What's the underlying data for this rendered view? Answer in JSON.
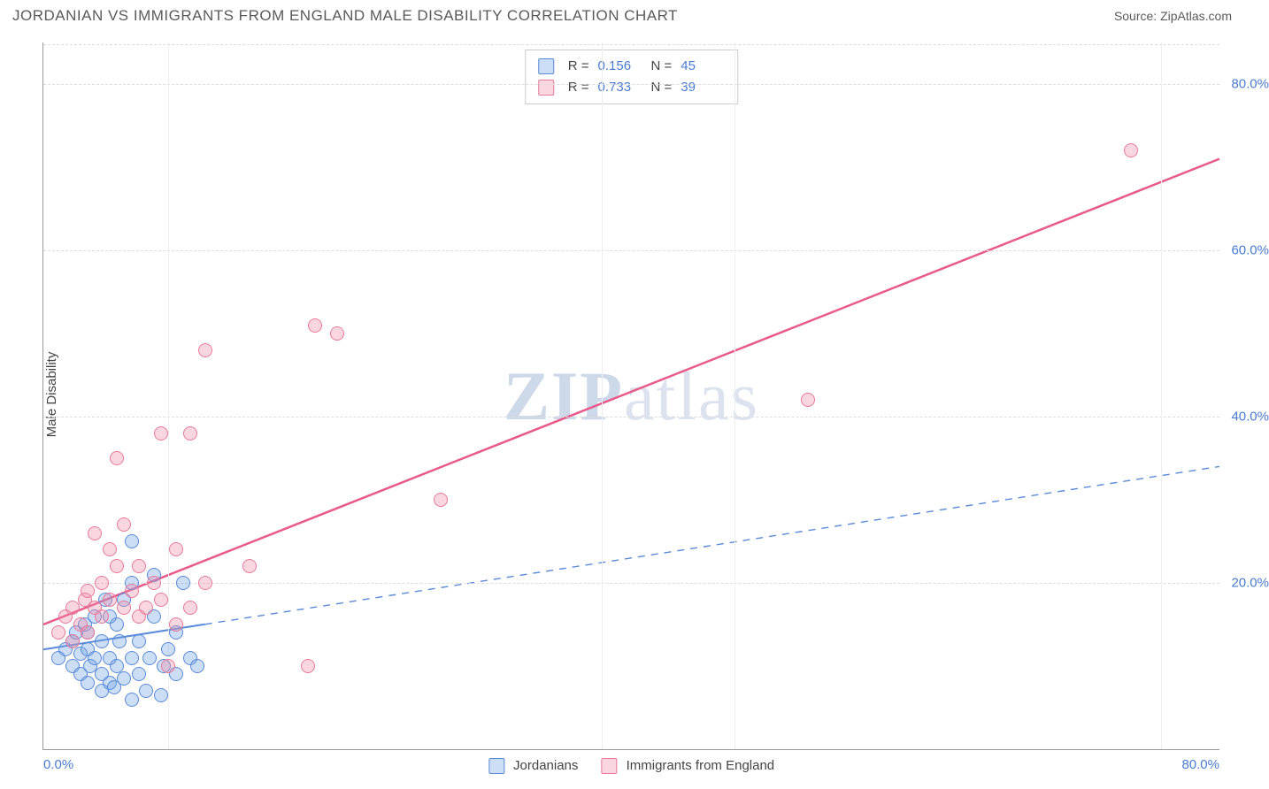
{
  "title": "JORDANIAN VS IMMIGRANTS FROM ENGLAND MALE DISABILITY CORRELATION CHART",
  "source": "Source: ZipAtlas.com",
  "ylabel": "Male Disability",
  "watermark_a": "ZIP",
  "watermark_b": "atlas",
  "chart": {
    "type": "scatter",
    "xlim": [
      0,
      80
    ],
    "ylim": [
      0,
      85
    ],
    "yticks": [
      20,
      40,
      60,
      80
    ],
    "ytick_labels": [
      "20.0%",
      "40.0%",
      "60.0%",
      "80.0%"
    ],
    "xticks": [
      0,
      80
    ],
    "xtick_labels": [
      "0.0%",
      "80.0%"
    ],
    "vgrid": [
      8.5,
      38,
      47,
      76
    ],
    "grid_color": "#dddddd",
    "background": "#ffffff",
    "point_radius": 8,
    "series": [
      {
        "name": "Jordanians",
        "color_fill": "rgba(110,160,230,0.35)",
        "color_stroke": "#5a8ad8",
        "R": "0.156",
        "N": "45",
        "trend": {
          "x1": 0,
          "y1": 12,
          "x2": 80,
          "y2": 34,
          "solid_until_x": 11,
          "stroke": "#5a8ad8",
          "width": 2
        },
        "points": [
          [
            1,
            11
          ],
          [
            1.5,
            12
          ],
          [
            2,
            10
          ],
          [
            2,
            13
          ],
          [
            2.2,
            14
          ],
          [
            2.5,
            9
          ],
          [
            2.5,
            11.5
          ],
          [
            2.8,
            15
          ],
          [
            3,
            8
          ],
          [
            3,
            12
          ],
          [
            3,
            14
          ],
          [
            3.2,
            10
          ],
          [
            3.5,
            11
          ],
          [
            3.5,
            16
          ],
          [
            4,
            7
          ],
          [
            4,
            9
          ],
          [
            4,
            13
          ],
          [
            4.2,
            18
          ],
          [
            4.5,
            8
          ],
          [
            4.5,
            11
          ],
          [
            4.8,
            7.5
          ],
          [
            5,
            15
          ],
          [
            5,
            10
          ],
          [
            5.2,
            13
          ],
          [
            5.5,
            8.5
          ],
          [
            5.5,
            18
          ],
          [
            6,
            6
          ],
          [
            6,
            11
          ],
          [
            6,
            20
          ],
          [
            6,
            25
          ],
          [
            6.5,
            9
          ],
          [
            6.5,
            13
          ],
          [
            7,
            7
          ],
          [
            7.2,
            11
          ],
          [
            7.5,
            21
          ],
          [
            8,
            6.5
          ],
          [
            8.2,
            10
          ],
          [
            8.5,
            12
          ],
          [
            9,
            9
          ],
          [
            9,
            14
          ],
          [
            9.5,
            20
          ],
          [
            10,
            11
          ],
          [
            10.5,
            10
          ],
          [
            7.5,
            16
          ],
          [
            4.5,
            16
          ]
        ]
      },
      {
        "name": "Immigrants from England",
        "color_fill": "rgba(240,140,165,0.35)",
        "color_stroke": "#e67a9a",
        "R": "0.733",
        "N": "39",
        "trend": {
          "x1": 0,
          "y1": 15,
          "x2": 80,
          "y2": 71,
          "solid_until_x": 80,
          "stroke": "#e85a8a",
          "width": 2.5
        },
        "points": [
          [
            1,
            14
          ],
          [
            1.5,
            16
          ],
          [
            2,
            13
          ],
          [
            2,
            17
          ],
          [
            2.5,
            15
          ],
          [
            2.8,
            18
          ],
          [
            3,
            19
          ],
          [
            3,
            14
          ],
          [
            3.5,
            26
          ],
          [
            3.5,
            17
          ],
          [
            4,
            20
          ],
          [
            4,
            16
          ],
          [
            4.5,
            24
          ],
          [
            4.5,
            18
          ],
          [
            5,
            35
          ],
          [
            5,
            22
          ],
          [
            5.5,
            17
          ],
          [
            5.5,
            27
          ],
          [
            6,
            19
          ],
          [
            6.5,
            22
          ],
          [
            6.5,
            16
          ],
          [
            7,
            17
          ],
          [
            7.5,
            20
          ],
          [
            8,
            38
          ],
          [
            8,
            18
          ],
          [
            8.5,
            10
          ],
          [
            9,
            15
          ],
          [
            9,
            24
          ],
          [
            10,
            38
          ],
          [
            10,
            17
          ],
          [
            11,
            48
          ],
          [
            11,
            20
          ],
          [
            14,
            22
          ],
          [
            18,
            10
          ],
          [
            18.5,
            51
          ],
          [
            20,
            50
          ],
          [
            27,
            30
          ],
          [
            52,
            42
          ],
          [
            74,
            72
          ]
        ]
      }
    ]
  },
  "legend": {
    "series1_label": "Jordanians",
    "series2_label": "Immigrants from England",
    "R_label": "R =",
    "N_label": "N ="
  }
}
